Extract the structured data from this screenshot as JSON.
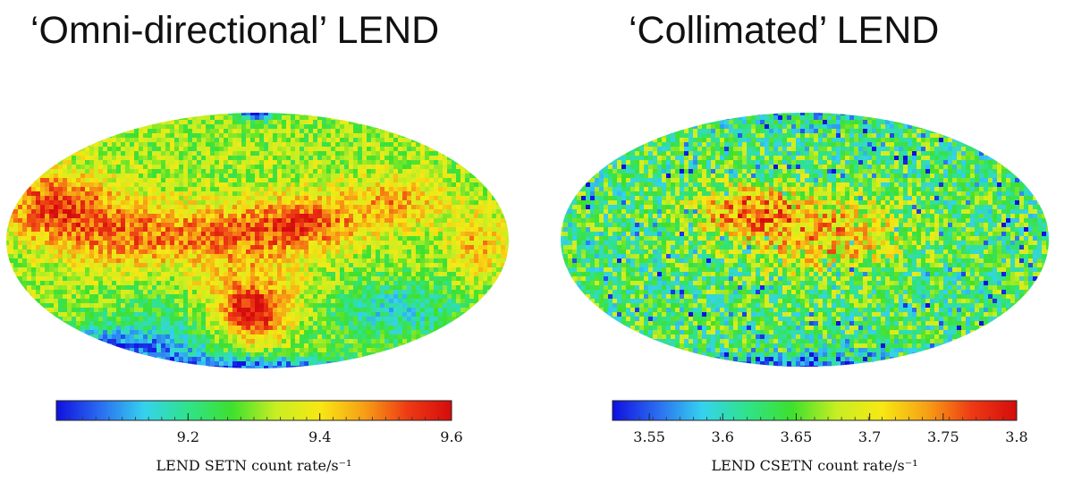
{
  "panels": [
    {
      "title": "‘Omni-directional’ LEND",
      "colorbar": {
        "min": 9.0,
        "max": 9.6,
        "ticks": [
          "9.2",
          "9.4",
          "9.6"
        ],
        "tick_values": [
          9.2,
          9.4,
          9.6
        ],
        "label": "LEND SETN count rate/s⁻¹"
      },
      "dominant_features": [
        "red region upper-left",
        "intense red patch lower-center",
        "blue band along lower-left and bottom edge",
        "blue patch at top pole"
      ]
    },
    {
      "title": "‘Collimated’ LEND",
      "colorbar": {
        "min": 3.525,
        "max": 3.8,
        "ticks": [
          "3.55",
          "3.6",
          "3.65",
          "3.7",
          "3.75",
          "3.8"
        ],
        "tick_values": [
          3.55,
          3.6,
          3.65,
          3.7,
          3.75,
          3.8
        ],
        "label": "LEND CSETN count rate/s⁻¹"
      },
      "dominant_features": [
        "mostly cyan/blue speckle",
        "orange-red patch upper-center-left",
        "blue band at bottom edge"
      ]
    }
  ],
  "colormap": [
    "#1010e0",
    "#2a6cf0",
    "#35d2ee",
    "#2fe38a",
    "#3ee02e",
    "#c8ee22",
    "#f7e814",
    "#f7a015",
    "#ee3a14",
    "#d40c0c"
  ]
}
